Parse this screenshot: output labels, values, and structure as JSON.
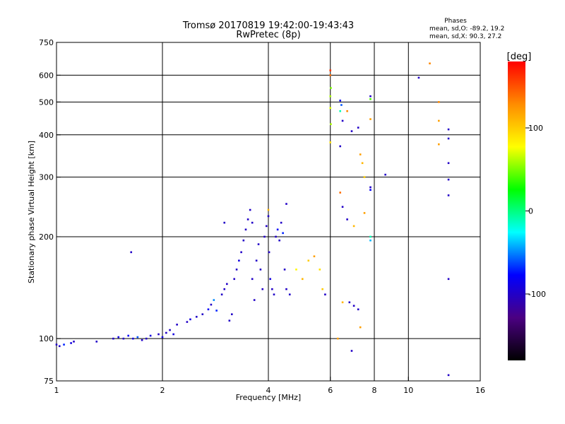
{
  "chart_data": {
    "type": "scatter",
    "title": "Tromsø 20170819 19:42:00-19:43:43",
    "subtitle": "RwPretec (8p)",
    "stats": {
      "heading": "Phases",
      "line_o": "mean, sd,O: -89.2, 19.2",
      "line_x": "mean, sd,X:  90.3, 27.2"
    },
    "xlabel": "Frequency [MHz]",
    "ylabel": "Stationary phase Virtual Height [km]",
    "x_scale": "log",
    "y_scale": "log",
    "xlim": [
      1,
      16
    ],
    "ylim": [
      75,
      750
    ],
    "x_ticks": [
      {
        "value": 1,
        "label": "1"
      },
      {
        "value": 2,
        "label": "2"
      },
      {
        "value": 4,
        "label": "4"
      },
      {
        "value": 6,
        "label": "6"
      },
      {
        "value": 8,
        "label": "8"
      },
      {
        "value": 10,
        "label": "10"
      },
      {
        "value": 16,
        "label": "16"
      }
    ],
    "x_grid": [
      2,
      4,
      6,
      8,
      10
    ],
    "y_ticks": [
      {
        "value": 75,
        "label": "75"
      },
      {
        "value": 100,
        "label": "100"
      },
      {
        "value": 200,
        "label": "200"
      },
      {
        "value": 300,
        "label": "300"
      },
      {
        "value": 400,
        "label": "400"
      },
      {
        "value": 500,
        "label": "500"
      },
      {
        "value": 600,
        "label": "600"
      },
      {
        "value": 750,
        "label": "750"
      }
    ],
    "y_grid": [
      100,
      200,
      300,
      400,
      500,
      600
    ],
    "colorbar": {
      "unit": "[deg]",
      "range": [
        -180,
        180
      ],
      "ticks": [
        {
          "value": 100,
          "label": "100"
        },
        {
          "value": 0,
          "label": "0"
        },
        {
          "value": -100,
          "label": "-100"
        }
      ],
      "colors": [
        "#000000",
        "#4b0082",
        "#0000ff",
        "#00ffff",
        "#00ff00",
        "#ffff00",
        "#ff8c00",
        "#ff0000"
      ]
    },
    "series": [
      {
        "points": [
          [
            1.0,
            96,
            -100
          ],
          [
            1.02,
            95,
            -100
          ],
          [
            1.05,
            96,
            -70
          ],
          [
            1.1,
            97,
            -90
          ],
          [
            1.12,
            98,
            -100
          ],
          [
            1.3,
            98,
            -100
          ],
          [
            1.45,
            100,
            -100
          ],
          [
            1.5,
            101,
            -90
          ],
          [
            1.55,
            100,
            -100
          ],
          [
            1.6,
            102,
            -80
          ],
          [
            1.65,
            100,
            -90
          ],
          [
            1.7,
            101,
            -60
          ],
          [
            1.75,
            99,
            -100
          ],
          [
            1.8,
            100,
            -100
          ],
          [
            1.85,
            102,
            -90
          ],
          [
            1.63,
            180,
            -100
          ],
          [
            1.95,
            103,
            -100
          ],
          [
            2.0,
            101,
            -90
          ],
          [
            2.05,
            104,
            -100
          ],
          [
            2.1,
            106,
            -100
          ],
          [
            2.15,
            103,
            -90
          ],
          [
            2.2,
            110,
            -100
          ],
          [
            2.35,
            112,
            -100
          ],
          [
            2.4,
            114,
            -90
          ],
          [
            2.5,
            116,
            -100
          ],
          [
            2.6,
            118,
            -100
          ],
          [
            2.7,
            122,
            -80
          ],
          [
            2.75,
            126,
            -100
          ],
          [
            2.8,
            130,
            -50
          ],
          [
            2.85,
            121,
            -70
          ],
          [
            2.95,
            135,
            -100
          ],
          [
            3.0,
            140,
            -100
          ],
          [
            3.05,
            145,
            -100
          ],
          [
            3.1,
            113,
            -100
          ],
          [
            3.15,
            118,
            -100
          ],
          [
            3.2,
            150,
            -100
          ],
          [
            3.25,
            160,
            -100
          ],
          [
            3.3,
            170,
            -90
          ],
          [
            3.35,
            180,
            -100
          ],
          [
            3.4,
            195,
            -100
          ],
          [
            3.45,
            210,
            -100
          ],
          [
            3.5,
            225,
            -100
          ],
          [
            3.55,
            240,
            -100
          ],
          [
            3.6,
            220,
            -100
          ],
          [
            3.6,
            150,
            -100
          ],
          [
            3.65,
            130,
            -100
          ],
          [
            3.7,
            170,
            -100
          ],
          [
            3.75,
            190,
            -100
          ],
          [
            3.8,
            160,
            -100
          ],
          [
            3.85,
            140,
            -100
          ],
          [
            3.9,
            200,
            -100
          ],
          [
            3.95,
            215,
            -100
          ],
          [
            4.0,
            230,
            -100
          ],
          [
            4.02,
            180,
            -100
          ],
          [
            4.05,
            150,
            -90
          ],
          [
            4.1,
            140,
            -100
          ],
          [
            4.15,
            135,
            -100
          ],
          [
            4.2,
            200,
            -100
          ],
          [
            4.25,
            210,
            -80
          ],
          [
            4.3,
            195,
            -100
          ],
          [
            4.35,
            220,
            -100
          ],
          [
            4.4,
            205,
            -70
          ],
          [
            4.45,
            160,
            -100
          ],
          [
            4.5,
            140,
            -100
          ],
          [
            4.6,
            135,
            -100
          ],
          [
            4.8,
            160,
            80
          ],
          [
            5.0,
            150,
            110
          ],
          [
            5.2,
            170,
            100
          ],
          [
            5.4,
            175,
            120
          ],
          [
            5.6,
            160,
            90
          ],
          [
            5.7,
            140,
            100
          ],
          [
            5.8,
            135,
            -100
          ],
          [
            3.0,
            220,
            -100
          ],
          [
            4.0,
            240,
            110
          ],
          [
            4.5,
            250,
            -100
          ],
          [
            6.0,
            620,
            160
          ],
          [
            6.0,
            600,
            140
          ],
          [
            6.02,
            550,
            50
          ],
          [
            6.0,
            520,
            60
          ],
          [
            6.0,
            480,
            70
          ],
          [
            6.02,
            430,
            60
          ],
          [
            6.0,
            380,
            90
          ],
          [
            6.4,
            505,
            -80
          ],
          [
            6.45,
            490,
            -60
          ],
          [
            6.4,
            470,
            -10
          ],
          [
            6.5,
            440,
            -100
          ],
          [
            6.4,
            370,
            -100
          ],
          [
            6.4,
            270,
            140
          ],
          [
            6.5,
            245,
            -100
          ],
          [
            6.7,
            470,
            130
          ],
          [
            6.9,
            410,
            -100
          ],
          [
            7.2,
            420,
            -100
          ],
          [
            7.3,
            350,
            120
          ],
          [
            7.4,
            330,
            110
          ],
          [
            7.5,
            300,
            100
          ],
          [
            7.8,
            520,
            -100
          ],
          [
            7.8,
            510,
            40
          ],
          [
            7.8,
            445,
            120
          ],
          [
            7.8,
            280,
            -100
          ],
          [
            7.8,
            275,
            -80
          ],
          [
            7.8,
            200,
            -10
          ],
          [
            7.8,
            195,
            -40
          ],
          [
            6.7,
            225,
            -100
          ],
          [
            7.0,
            215,
            110
          ],
          [
            7.5,
            235,
            120
          ],
          [
            8.6,
            305,
            -100
          ],
          [
            10.7,
            590,
            -100
          ],
          [
            11.5,
            650,
            130
          ],
          [
            12.2,
            500,
            130
          ],
          [
            12.2,
            440,
            120
          ],
          [
            12.2,
            375,
            120
          ],
          [
            13.0,
            415,
            -100
          ],
          [
            13.0,
            390,
            -100
          ],
          [
            13.0,
            330,
            -100
          ],
          [
            13.0,
            295,
            -100
          ],
          [
            13.0,
            265,
            -100
          ],
          [
            13.0,
            150,
            -100
          ],
          [
            13.0,
            78,
            -100
          ],
          [
            6.3,
            100,
            120
          ],
          [
            6.9,
            92,
            -100
          ],
          [
            7.3,
            108,
            120
          ],
          [
            6.5,
            128,
            110
          ],
          [
            6.8,
            128,
            -100
          ],
          [
            7.0,
            125,
            -100
          ],
          [
            7.2,
            122,
            -100
          ]
        ]
      }
    ]
  }
}
